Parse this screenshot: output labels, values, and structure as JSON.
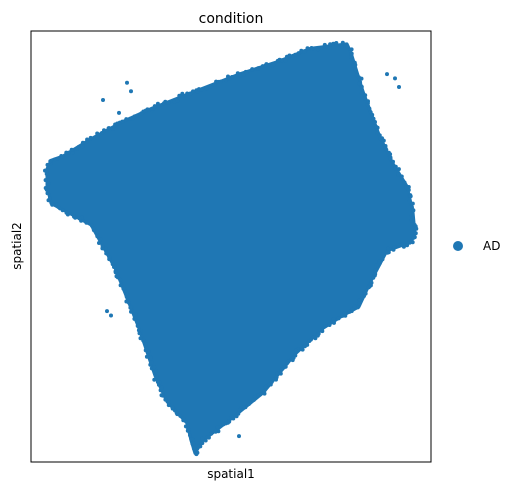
{
  "chart_data": {
    "type": "scatter",
    "title": "condition",
    "xlabel": "spatial1",
    "ylabel": "spatial2",
    "ticks_visible": false,
    "grid": false,
    "legend": {
      "placement": "right",
      "entries": [
        {
          "label": "AD",
          "color": "#1f77b4"
        }
      ]
    },
    "xlim": [
      0,
      1
    ],
    "ylim": [
      0,
      1
    ],
    "series": [
      {
        "name": "AD",
        "color": "#1f77b4",
        "marker": "circle",
        "region": [
          [
            0.04,
            0.68
          ],
          [
            0.05,
            0.7
          ],
          [
            0.08,
            0.71
          ],
          [
            0.15,
            0.75
          ],
          [
            0.23,
            0.79
          ],
          [
            0.3,
            0.82
          ],
          [
            0.41,
            0.86
          ],
          [
            0.52,
            0.9
          ],
          [
            0.62,
            0.93
          ],
          [
            0.7,
            0.96
          ],
          [
            0.79,
            0.97
          ],
          [
            0.8,
            0.95
          ],
          [
            0.83,
            0.86
          ],
          [
            0.87,
            0.76
          ],
          [
            0.9,
            0.7
          ],
          [
            0.94,
            0.64
          ],
          [
            0.955,
            0.58
          ],
          [
            0.96,
            0.53
          ],
          [
            0.95,
            0.51
          ],
          [
            0.89,
            0.49
          ],
          [
            0.85,
            0.42
          ],
          [
            0.82,
            0.36
          ],
          [
            0.78,
            0.34
          ],
          [
            0.73,
            0.31
          ],
          [
            0.66,
            0.25
          ],
          [
            0.58,
            0.16
          ],
          [
            0.5,
            0.1
          ],
          [
            0.43,
            0.05
          ],
          [
            0.41,
            0.02
          ],
          [
            0.4,
            0.05
          ],
          [
            0.39,
            0.09
          ],
          [
            0.34,
            0.14
          ],
          [
            0.31,
            0.2
          ],
          [
            0.27,
            0.31
          ],
          [
            0.21,
            0.45
          ],
          [
            0.15,
            0.55
          ],
          [
            0.11,
            0.57
          ],
          [
            0.05,
            0.6
          ],
          [
            0.04,
            0.64
          ]
        ],
        "outliers": [
          [
            0.24,
            0.88
          ],
          [
            0.25,
            0.86
          ],
          [
            0.18,
            0.84
          ],
          [
            0.22,
            0.81
          ],
          [
            0.89,
            0.9
          ],
          [
            0.91,
            0.89
          ],
          [
            0.92,
            0.87
          ],
          [
            0.19,
            0.35
          ],
          [
            0.2,
            0.34
          ],
          [
            0.3,
            0.24
          ],
          [
            0.52,
            0.06
          ],
          [
            0.95,
            0.56
          ]
        ]
      }
    ]
  }
}
